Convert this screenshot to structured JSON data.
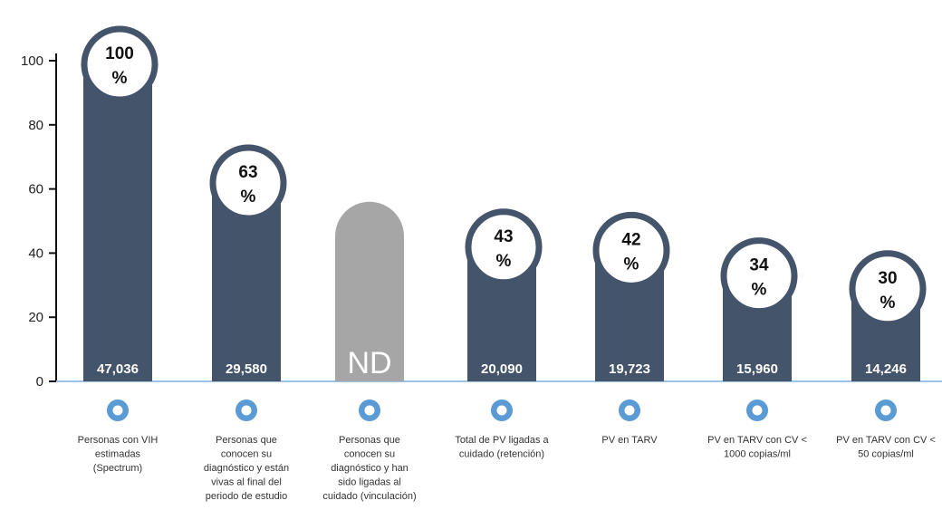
{
  "chart_data": {
    "type": "bar",
    "ylim": [
      0,
      100
    ],
    "yticks": [
      "0",
      "20",
      "40",
      "60",
      "80",
      "100"
    ],
    "grid": false,
    "colors": {
      "bar": "#44546a",
      "nd_bar": "#a6a6a6",
      "badge_ring": "#44546a",
      "marker": "#5b9bd5"
    },
    "bars": [
      {
        "category": [
          "Personas con VIH",
          "estimadas",
          "(Spectrum)"
        ],
        "value": 100,
        "pct_top": "100",
        "pct_bottom": "%",
        "count": "47,036",
        "nd": false
      },
      {
        "category": [
          "Personas que",
          "conocen su",
          "diagnóstico y están",
          "vivas al final del",
          "periodo de estudio"
        ],
        "value": 63,
        "pct_top": "63",
        "pct_bottom": "%",
        "count": "29,580",
        "nd": false
      },
      {
        "category": [
          "Personas que",
          "conocen su",
          "diagnóstico y han",
          "sido ligadas al",
          "cuidado (vinculación)"
        ],
        "value": 56,
        "pct_top": "",
        "pct_bottom": "",
        "count": "ND",
        "nd": true
      },
      {
        "category": [
          "Total de PV ligadas a",
          "cuidado (retención)"
        ],
        "value": 43,
        "pct_top": "43",
        "pct_bottom": "%",
        "count": "20,090",
        "nd": false
      },
      {
        "category": [
          "PV en TARV"
        ],
        "value": 42,
        "pct_top": "42",
        "pct_bottom": "%",
        "count": "19,723",
        "nd": false
      },
      {
        "category": [
          "PV en TARV con CV <",
          "1000 copias/ml"
        ],
        "value": 34,
        "pct_top": "34",
        "pct_bottom": "%",
        "count": "15,960",
        "nd": false
      },
      {
        "category": [
          "PV en TARV con CV <",
          "50 copias/ml"
        ],
        "value": 30,
        "pct_top": "30",
        "pct_bottom": "%",
        "count": "14,246",
        "nd": false
      }
    ]
  }
}
